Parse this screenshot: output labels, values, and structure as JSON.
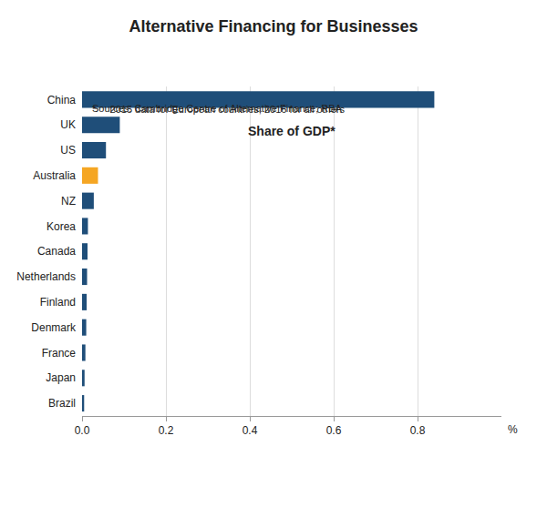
{
  "chart_data": {
    "type": "bar",
    "orientation": "horizontal",
    "title": "Alternative Financing for Businesses",
    "subtitle": "Share of GDP*",
    "xlabel": "%",
    "annotations": [
      "*     2015 data for European countries, 2016 for all others",
      "Sources: Cambridge Centre of Alternative Finance; RBA"
    ],
    "categories": [
      "China",
      "UK",
      "US",
      "Australia",
      "NZ",
      "Korea",
      "Canada",
      "Netherlands",
      "Finland",
      "Denmark",
      "France",
      "Japan",
      "Brazil"
    ],
    "values": [
      0.84,
      0.09,
      0.057,
      0.038,
      0.028,
      0.014,
      0.013,
      0.012,
      0.011,
      0.01,
      0.008,
      0.006,
      0.005
    ],
    "colors": [
      "#1F4E79",
      "#1F4E79",
      "#1F4E79",
      "#F5A623",
      "#1F4E79",
      "#1F4E79",
      "#1F4E79",
      "#1F4E79",
      "#1F4E79",
      "#1F4E79",
      "#1F4E79",
      "#1F4E79",
      "#1F4E79"
    ],
    "xlim": [
      0,
      1.0
    ],
    "xticks": [
      {
        "value": 0.0,
        "label": "0.0"
      },
      {
        "value": 0.2,
        "label": "0.2"
      },
      {
        "value": 0.4,
        "label": "0.4"
      },
      {
        "value": 0.6,
        "label": "0.6"
      },
      {
        "value": 0.8,
        "label": "0.8"
      }
    ],
    "grid": true
  }
}
